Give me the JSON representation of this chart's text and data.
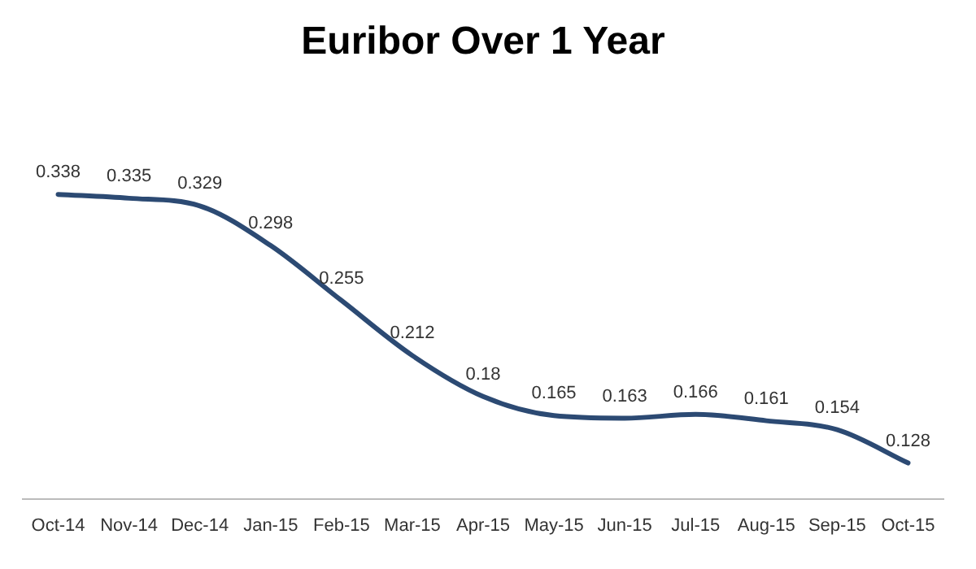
{
  "chart_data": {
    "type": "line",
    "title": "Euribor Over 1 Year",
    "categories": [
      "Oct-14",
      "Nov-14",
      "Dec-14",
      "Jan-15",
      "Feb-15",
      "Mar-15",
      "Apr-15",
      "May-15",
      "Jun-15",
      "Jul-15",
      "Aug-15",
      "Sep-15",
      "Oct-15"
    ],
    "series": [
      {
        "color": "#2c4a73",
        "values": [
          0.338,
          0.335,
          0.329,
          0.298,
          0.255,
          0.212,
          0.18,
          0.165,
          0.163,
          0.166,
          0.161,
          0.154,
          0.128
        ]
      }
    ],
    "data_labels": true,
    "grid": false,
    "legend": false,
    "marker": "none"
  }
}
